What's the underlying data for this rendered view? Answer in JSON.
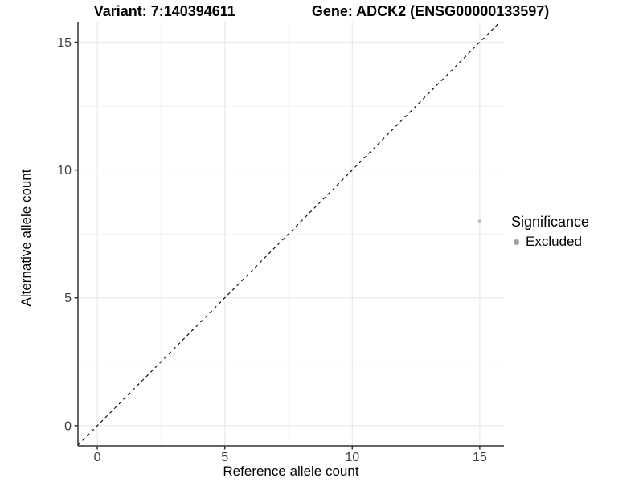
{
  "titles": {
    "variant": "Variant: 7:140394611",
    "gene": "Gene: ADCK2 (ENSG00000133597)"
  },
  "axes": {
    "x_label": "Reference allele count",
    "y_label": "Alternative allele count"
  },
  "legend": {
    "title": "Significance",
    "items": [
      {
        "label": "Excluded",
        "color": "#a0a0a0"
      }
    ]
  },
  "chart_data": {
    "type": "scatter",
    "title": "Variant: 7:140394611 — Gene: ADCK2 (ENSG00000133597)",
    "xlabel": "Reference allele count",
    "ylabel": "Alternative allele count",
    "xlim": [
      -0.76,
      15.95
    ],
    "ylim": [
      -0.79,
      15.77
    ],
    "x_ticks": [
      0,
      5,
      10,
      15
    ],
    "y_ticks": [
      0,
      5,
      10,
      15
    ],
    "x_minor_ticks": [
      2.5,
      7.5,
      12.5
    ],
    "y_minor_ticks": [
      2.5,
      7.5,
      12.5
    ],
    "grid": true,
    "legend_position": "right",
    "reference_line": {
      "type": "identity",
      "equation": "y = x",
      "style": "dashed",
      "color": "#000000"
    },
    "series": [
      {
        "name": "Excluded",
        "color": "#bfbfbf",
        "point_radius": 2.3,
        "points": [
          {
            "x": 15,
            "y": 8
          }
        ]
      }
    ]
  },
  "style_colors": {
    "axis_line": "#333333",
    "tick_label": "#404040",
    "grid_major": "#e9e9e9",
    "grid_minor": "#f3f3f3",
    "background": "#ffffff"
  }
}
